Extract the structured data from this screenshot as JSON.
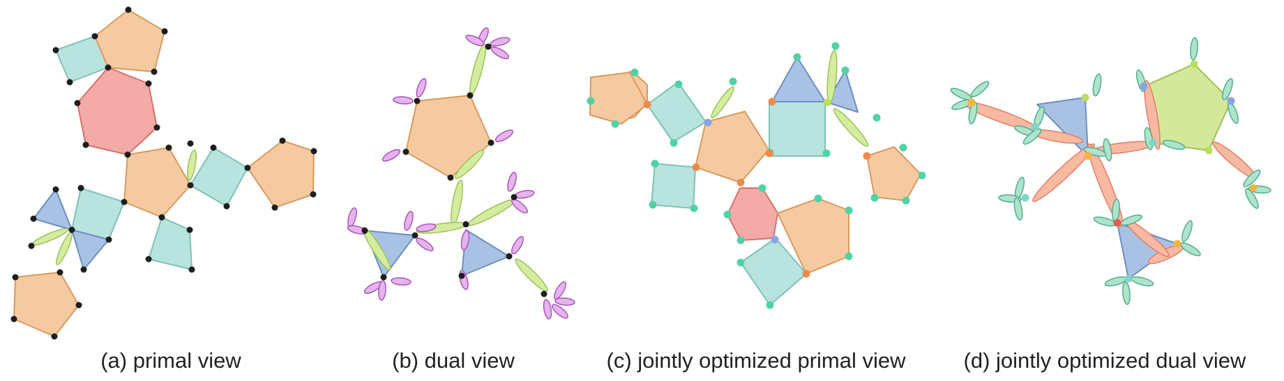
{
  "panels": [
    {
      "caption": "(a) primal view"
    },
    {
      "caption": "(b) dual view"
    },
    {
      "caption": "(c) jointly optimized primal view"
    },
    {
      "caption": "(d) jointly optimized dual view"
    }
  ],
  "colors": {
    "pentagon_fill": "#f5caa0",
    "pentagon_stroke": "#d89a5e",
    "square_fill": "#b9e3de",
    "square_stroke": "#7cc3b8",
    "hexagon_fill": "#f4aaa6",
    "hexagon_stroke": "#d9706c",
    "triangle_fill": "#a9c2e4",
    "triangle_stroke": "#6b8fbf",
    "green_petal_fill": "#d3ec9e",
    "green_petal_stroke": "#99c25a",
    "purple_petal_fill": "#e7b3ee",
    "purple_petal_stroke": "#a855b8",
    "teal_petal_fill": "#aee3cc",
    "teal_petal_stroke": "#4fae8c",
    "salmon_petal_fill": "#f8b9a3",
    "salmon_petal_stroke": "#e37d62",
    "black_node": "#1e1e1e",
    "teal_node": "#4fd3a6",
    "orange_node": "#f08a4b",
    "blue_node": "#8aa3e8",
    "lime_node": "#b8e05a",
    "red_node": "#e55b4f"
  }
}
